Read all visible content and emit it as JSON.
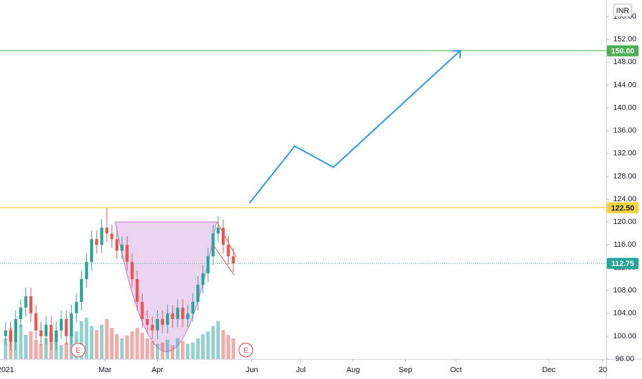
{
  "chart_data": {
    "type": "candlestick",
    "currency": "INR",
    "x": [
      0,
      3,
      6,
      9,
      12,
      15,
      18,
      21,
      24,
      27,
      30,
      33,
      36,
      39,
      42,
      45,
      48,
      51,
      54,
      57,
      60,
      63,
      66,
      69,
      72,
      75,
      78,
      81,
      84,
      87,
      90,
      93,
      96,
      99,
      102,
      105,
      108,
      111,
      114,
      117,
      120,
      123,
      126,
      129,
      132,
      135
    ],
    "open": [
      100,
      101,
      99,
      103,
      105,
      107,
      104,
      101,
      100,
      102,
      99,
      101,
      103,
      100,
      104,
      106,
      110,
      113,
      117,
      116,
      119,
      118,
      117,
      115,
      116,
      113,
      110,
      106,
      103,
      102,
      101,
      103,
      102,
      104,
      103,
      105,
      103,
      104,
      106,
      109,
      111,
      114,
      118,
      119,
      116,
      114
    ],
    "high": [
      102.5,
      102.5,
      104.5,
      106.5,
      108.5,
      108.5,
      105.5,
      102.5,
      103.5,
      103.5,
      102.5,
      104.5,
      104.5,
      105.5,
      107.5,
      111.5,
      114.5,
      118.5,
      118.5,
      120.5,
      122.5,
      119.5,
      118.5,
      117.5,
      117.5,
      114.5,
      111.5,
      107.5,
      104.5,
      103.5,
      104.5,
      104.5,
      105.5,
      105.5,
      106.5,
      106.5,
      105.5,
      107.5,
      110.5,
      112.5,
      115.5,
      119.5,
      121,
      120.5,
      117.5,
      115.5
    ],
    "low": [
      98.5,
      97.5,
      97.5,
      101.5,
      103.5,
      102.5,
      99.5,
      98.5,
      98.5,
      97.5,
      97.5,
      99.5,
      98.5,
      98.5,
      102.5,
      104.5,
      108.5,
      111.5,
      114.5,
      114.5,
      116.5,
      115.5,
      113.5,
      113.5,
      111.5,
      108.5,
      104.5,
      101.5,
      100.5,
      99.5,
      99.5,
      100.5,
      100.5,
      101.5,
      101.5,
      101.5,
      101.5,
      102.5,
      104.5,
      107.5,
      109.5,
      112.5,
      116.5,
      114.5,
      112.5,
      111.25
    ],
    "close": [
      101,
      99,
      103,
      105,
      107,
      104,
      101,
      100,
      102,
      99,
      101,
      103,
      100,
      104,
      106,
      110,
      113,
      117,
      116,
      119,
      118,
      117,
      115,
      116,
      113,
      110,
      106,
      103,
      102,
      101,
      103,
      102,
      104,
      103,
      105,
      103,
      104,
      106,
      109,
      111,
      114,
      118,
      119,
      116,
      114,
      112.75
    ],
    "volume": [
      30,
      45,
      25,
      50,
      35,
      40,
      28,
      22,
      30,
      38,
      26,
      20,
      24,
      35,
      40,
      55,
      60,
      48,
      42,
      50,
      58,
      45,
      36,
      30,
      34,
      40,
      45,
      38,
      30,
      26,
      22,
      24,
      28,
      20,
      30,
      26,
      22,
      24,
      30,
      36,
      40,
      48,
      55,
      42,
      35,
      30
    ],
    "up_color": "#26a69a",
    "down_color": "#ef5350",
    "xlim": [
      -3.3,
      356
    ],
    "ylim": [
      96,
      158.9
    ],
    "xticks": [
      {
        "value": 0,
        "label": "2021"
      },
      {
        "value": 59,
        "label": "Mar"
      },
      {
        "value": 90,
        "label": "Apr"
      },
      {
        "value": 146,
        "label": "Jun"
      },
      {
        "value": 175,
        "label": "Jul"
      },
      {
        "value": 206,
        "label": "Aug"
      },
      {
        "value": 237,
        "label": "Sep"
      },
      {
        "value": 267,
        "label": "Oct"
      },
      {
        "value": 322,
        "label": "Dec"
      },
      {
        "value": 354,
        "label": "20"
      }
    ],
    "yticks": [
      {
        "value": 96,
        "label": "96.00"
      },
      {
        "value": 100,
        "label": "100.00"
      },
      {
        "value": 104,
        "label": "104.00"
      },
      {
        "value": 108,
        "label": "108.00"
      },
      {
        "value": 112,
        "label": "112.00"
      },
      {
        "value": 116,
        "label": "116.00"
      },
      {
        "value": 120,
        "label": "120.00"
      },
      {
        "value": 124,
        "label": "124.00"
      },
      {
        "value": 128,
        "label": "128.00"
      },
      {
        "value": 132,
        "label": "132.00"
      },
      {
        "value": 136,
        "label": "136.00"
      },
      {
        "value": 140,
        "label": "140.00"
      },
      {
        "value": 144,
        "label": "144.00"
      },
      {
        "value": 148,
        "label": "148.00"
      },
      {
        "value": 152,
        "label": "152.00"
      },
      {
        "value": 156,
        "label": "156.00"
      }
    ],
    "levels": [
      {
        "value": 150,
        "label": "150.00",
        "color": "#4caf50",
        "style": "solid"
      },
      {
        "value": 122.5,
        "label": "122.50",
        "color": "#f2d43a",
        "style": "solid"
      },
      {
        "value": 112.75,
        "label": "112.75",
        "color": "#26a69a",
        "style": "dotted"
      }
    ],
    "projection": {
      "color": "#2196f3",
      "x": [
        144.5,
        171.4,
        194.3,
        269.4
      ],
      "y": [
        123.3,
        133.3,
        129.6,
        150
      ]
    },
    "cup": {
      "color": "#ce93d8",
      "x": [
        65,
        96,
        125
      ],
      "y": [
        120,
        97.3,
        120
      ]
    },
    "flag": {
      "color": "#ef5350",
      "lines": [
        {
          "x": [
            125.3,
            136.7
          ],
          "y": [
            120,
            113.9
          ]
        },
        {
          "x": [
            122.8,
            135.5
          ],
          "y": [
            116.1,
            110.7
          ]
        }
      ]
    },
    "events": [
      {
        "x": 43,
        "label": "E"
      },
      {
        "x": 142.4,
        "label": "E"
      }
    ]
  }
}
